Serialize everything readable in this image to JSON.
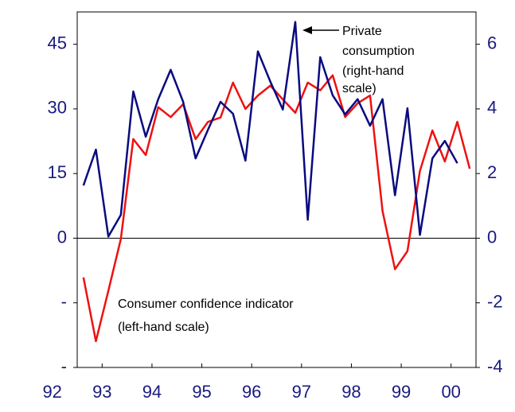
{
  "chart_data": {
    "type": "line",
    "annotations": [
      {
        "lines": [
          "Private",
          "consumption",
          "(right-hand",
          "scale)"
        ]
      },
      {
        "lines": [
          "Consumer confidence indicator",
          "(left-hand scale)"
        ]
      }
    ],
    "x": [
      1992.625,
      1992.875,
      1993.125,
      1993.375,
      1993.625,
      1993.875,
      1994.125,
      1994.375,
      1994.625,
      1994.875,
      1995.125,
      1995.375,
      1995.625,
      1995.875,
      1996.125,
      1996.375,
      1996.625,
      1996.875,
      1997.125,
      1997.375,
      1997.625,
      1997.875,
      1998.125,
      1998.375,
      1998.625,
      1998.875,
      1999.125,
      1999.375,
      1999.625,
      1999.875,
      2000.125,
      2000.375
    ],
    "series": [
      {
        "name": "Consumer confidence indicator",
        "color": "#ee1111",
        "axis": "y",
        "values": [
          -9.1,
          -23.9,
          -12.2,
          -0.2,
          23.0,
          19.3,
          30.4,
          28.1,
          31.1,
          23.0,
          27.0,
          28.0,
          36.1,
          30.0,
          33.1,
          35.4,
          32.2,
          29.1,
          36.1,
          34.3,
          37.8,
          28.1,
          31.3,
          33.1,
          6.3,
          -7.2,
          -3.0,
          15.6,
          25.0,
          17.8,
          27.0,
          16.1
        ]
      },
      {
        "name": "Private consumption",
        "color": "#0a0a80",
        "axis": "y2",
        "values": [
          1.63,
          2.74,
          0.05,
          0.72,
          4.54,
          3.14,
          4.3,
          5.21,
          4.22,
          2.47,
          3.36,
          4.22,
          3.85,
          2.4,
          5.78,
          4.84,
          3.98,
          6.69,
          0.57,
          5.6,
          4.42,
          3.83,
          4.3,
          3.48,
          4.3,
          1.33,
          4.02,
          0.1,
          2.47,
          3.01,
          2.32,
          null
        ]
      }
    ],
    "xlim": [
      1992.5,
      2000.5
    ],
    "xticks": [
      {
        "value": 1992,
        "label": "92"
      },
      {
        "value": 1993,
        "label": "93"
      },
      {
        "value": 1994,
        "label": "94"
      },
      {
        "value": 1995,
        "label": "95"
      },
      {
        "value": 1996,
        "label": "96"
      },
      {
        "value": 1997,
        "label": "97"
      },
      {
        "value": 1998,
        "label": "98"
      },
      {
        "value": 1999,
        "label": "99"
      },
      {
        "value": 2000,
        "label": "00"
      }
    ],
    "ylim": [
      -30,
      52.5
    ],
    "yticks": [
      {
        "value": -30,
        "label": "-"
      },
      {
        "value": -15,
        "label": "-"
      },
      0,
      15,
      30,
      45
    ],
    "y2lim": [
      -4,
      7
    ],
    "y2ticks": [
      -4,
      -2,
      0,
      2,
      4,
      6
    ],
    "grid": false
  }
}
